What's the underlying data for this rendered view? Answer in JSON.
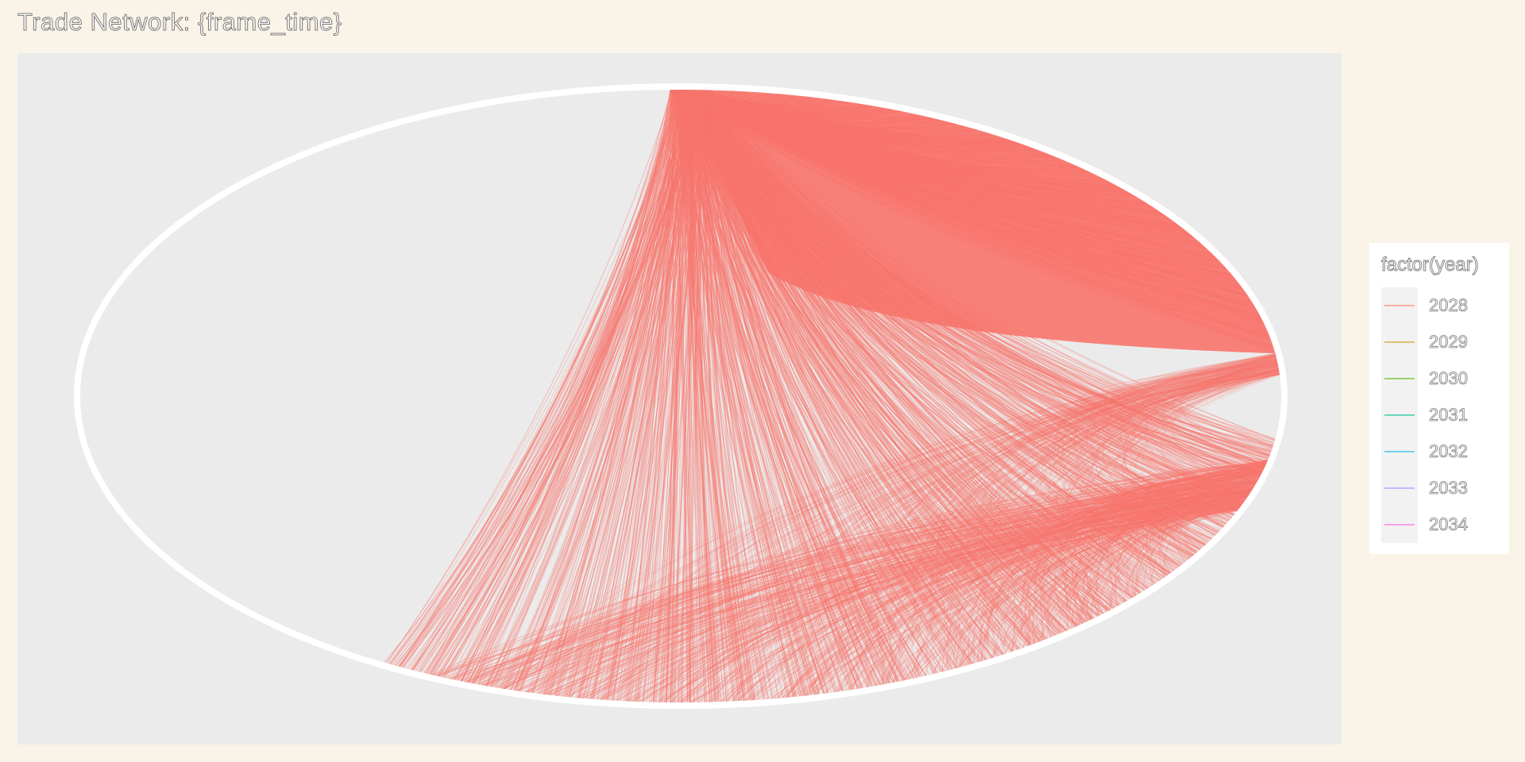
{
  "chart_data": {
    "type": "network",
    "title": "Trade Network: {frame_time}",
    "legend": {
      "title": "factor(year)",
      "placement": "right",
      "entries": [
        {
          "label": "2028",
          "color": "#F8766D"
        },
        {
          "label": "2029",
          "color": "#C49A00"
        },
        {
          "label": "2030",
          "color": "#53B400"
        },
        {
          "label": "2031",
          "color": "#00C094"
        },
        {
          "label": "2032",
          "color": "#00B6EB"
        },
        {
          "label": "2033",
          "color": "#A58AFF"
        },
        {
          "label": "2034",
          "color": "#FB61D7"
        }
      ]
    },
    "edge_color": "#F8766D",
    "node_ring_color": "#FFFFFF",
    "panel_background": "#EBEBEB",
    "page_background": "#FAF3E8"
  }
}
